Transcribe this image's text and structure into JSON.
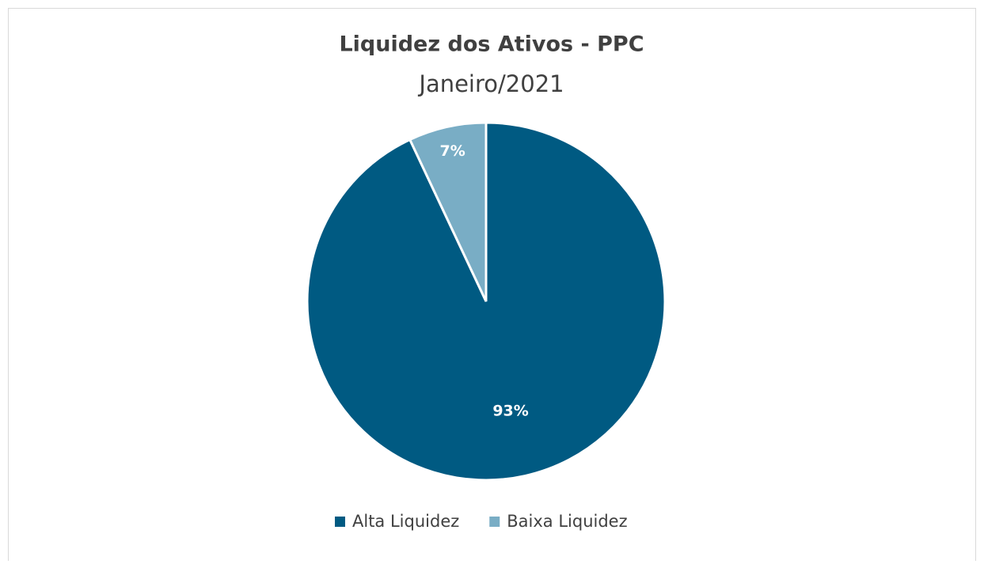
{
  "chart_data": {
    "type": "pie",
    "title": "Liquidez dos Ativos - PPC",
    "subtitle": "Janeiro/2021",
    "categories": [
      "Alta Liquidez",
      "Baixa Liquidez"
    ],
    "values": [
      93,
      7
    ],
    "value_labels": [
      "93%",
      "7%"
    ],
    "colors": [
      "#005a82",
      "#79adc5"
    ],
    "legend": "bottom"
  }
}
